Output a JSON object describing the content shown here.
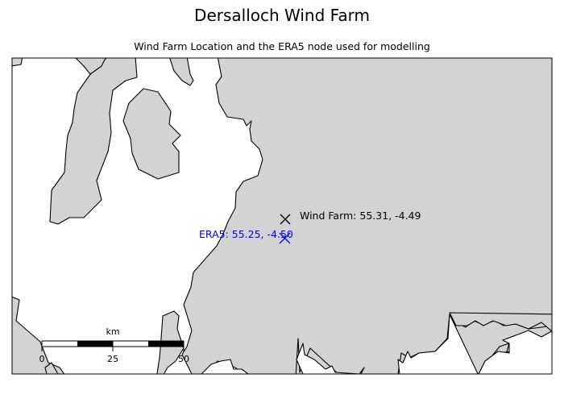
{
  "title": "Dersalloch Wind Farm",
  "subtitle": "Wind Farm Location and the ERA5 node used for modelling",
  "colors": {
    "land": "#d3d3d3",
    "sea": "#ffffff",
    "coast": "#000000",
    "wind_marker": "#000000",
    "era5_marker": "#0000ff"
  },
  "markers": {
    "wind_farm": {
      "label": "Wind Farm: 55.31, -4.49",
      "lat": 55.31,
      "lon": -4.49,
      "symbol": "x"
    },
    "era5": {
      "label": "ERA5: 55.25, -4.50",
      "lat": 55.25,
      "lon": -4.5,
      "symbol": "x"
    }
  },
  "scalebar": {
    "unit": "km",
    "ticks": [
      "0",
      "25",
      "50"
    ]
  }
}
